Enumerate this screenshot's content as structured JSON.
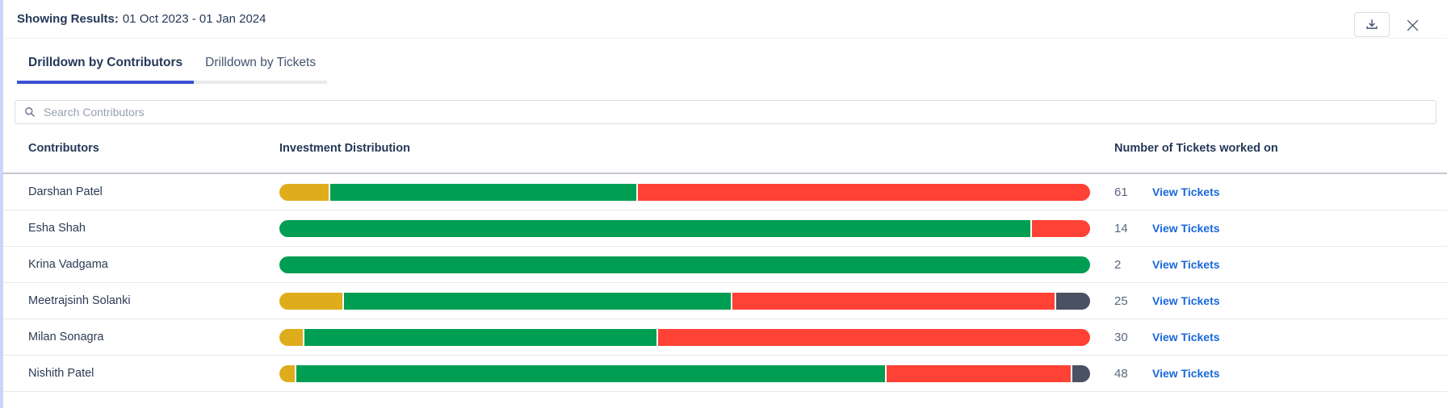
{
  "header": {
    "results_label": "Showing Results:",
    "results_value": "01 Oct 2023 - 01 Jan 2024"
  },
  "tabs": [
    {
      "label": "Drilldown by Contributors",
      "active": true
    },
    {
      "label": "Drilldown by Tickets",
      "active": false
    }
  ],
  "search": {
    "placeholder": "Search Contributors"
  },
  "colors": {
    "yellow": "#dfad1c",
    "green": "#009e52",
    "red": "#ff4136",
    "slate": "#4a5162",
    "link_blue": "#1868db",
    "active_tab_underline": "#3a52d5"
  },
  "table": {
    "columns": [
      "Contributors",
      "Investment Distribution",
      "Number of Tickets worked on"
    ],
    "view_tickets_label": "View Tickets",
    "rows": [
      {
        "name": "Darshan Patel",
        "tickets": "61",
        "segments": [
          {
            "color": "yellow",
            "pct": 6.1
          },
          {
            "color": "green",
            "pct": 37.9
          },
          {
            "color": "red",
            "pct": 56.0
          }
        ]
      },
      {
        "name": "Esha Shah",
        "tickets": "14",
        "segments": [
          {
            "color": "green",
            "pct": 92.6
          },
          {
            "color": "red",
            "pct": 7.4
          }
        ]
      },
      {
        "name": "Krina Vadgama",
        "tickets": "2",
        "segments": [
          {
            "color": "green",
            "pct": 100
          }
        ]
      },
      {
        "name": "Meetrajsinh Solanki",
        "tickets": "25",
        "segments": [
          {
            "color": "yellow",
            "pct": 7.8
          },
          {
            "color": "green",
            "pct": 47.9
          },
          {
            "color": "red",
            "pct": 39.9
          },
          {
            "color": "slate",
            "pct": 4.4
          }
        ]
      },
      {
        "name": "Milan Sonagra",
        "tickets": "30",
        "segments": [
          {
            "color": "yellow",
            "pct": 2.9
          },
          {
            "color": "green",
            "pct": 43.6
          },
          {
            "color": "red",
            "pct": 53.5
          }
        ]
      },
      {
        "name": "Nishith Patel",
        "tickets": "48",
        "segments": [
          {
            "color": "yellow",
            "pct": 1.9
          },
          {
            "color": "green",
            "pct": 72.8
          },
          {
            "color": "red",
            "pct": 22.9
          },
          {
            "color": "slate",
            "pct": 2.4
          }
        ]
      }
    ]
  }
}
